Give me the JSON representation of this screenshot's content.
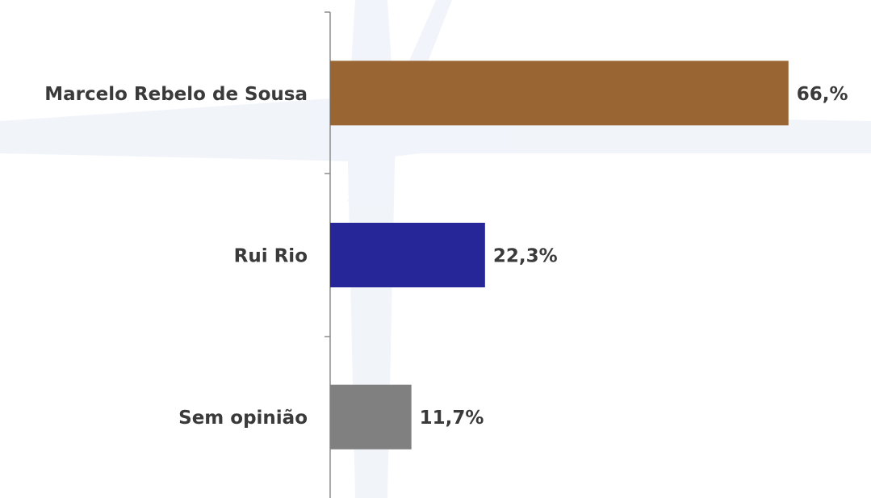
{
  "chart_data": {
    "type": "bar",
    "orientation": "horizontal",
    "categories": [
      "Marcelo Rebelo de Sousa",
      "Rui Rio",
      "Sem opinião"
    ],
    "values": [
      66,
      22.3,
      11.7
    ],
    "value_labels": [
      "66,%",
      "22,3%",
      "11,7%"
    ],
    "colors": [
      "#996633",
      "#262699",
      "#808080"
    ],
    "xlim": [
      0,
      78
    ]
  }
}
